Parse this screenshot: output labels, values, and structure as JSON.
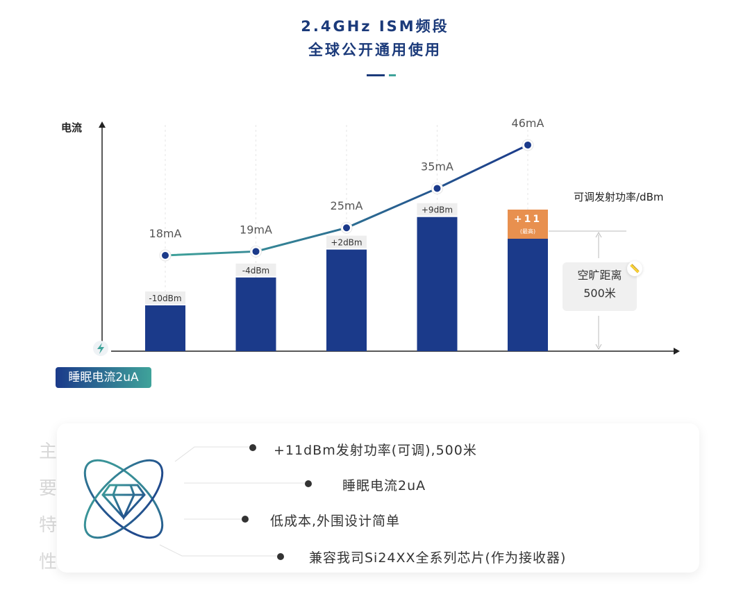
{
  "header": {
    "line1": "2.4GHz ISM频段",
    "line2": "全球公开通用使用"
  },
  "chart_data": {
    "type": "bar+line",
    "ylabel": "电流",
    "xlabel": "可调发射功率/dBm",
    "categories": [
      "-10dBm",
      "-4dBm",
      "+2dBm",
      "+9dBm",
      "+11"
    ],
    "power_dbm": [
      -10,
      -4,
      2,
      9,
      11
    ],
    "current_ma": [
      18,
      19,
      25,
      35,
      46
    ],
    "current_labels": [
      "18mA",
      "19mA",
      "25mA",
      "35mA",
      "46mA"
    ],
    "max_note": "(最高)",
    "colors": {
      "bar": "#1b3a8a",
      "max_bar": "#e8904f",
      "line_start": "#3fa39a",
      "line_end": "#1b3a8a"
    }
  },
  "distance": {
    "line1": "空旷距离",
    "line2": "500米"
  },
  "sleep_badge": "睡眠电流2uA",
  "features": {
    "side_title": [
      "主",
      "要",
      "特",
      "性"
    ],
    "items": [
      "+11dBm发射功率(可调),500米",
      "睡眠电流2uA",
      "低成本,外围设计简单",
      "兼容我司Si24XX全系列芯片(作为接收器)"
    ]
  }
}
